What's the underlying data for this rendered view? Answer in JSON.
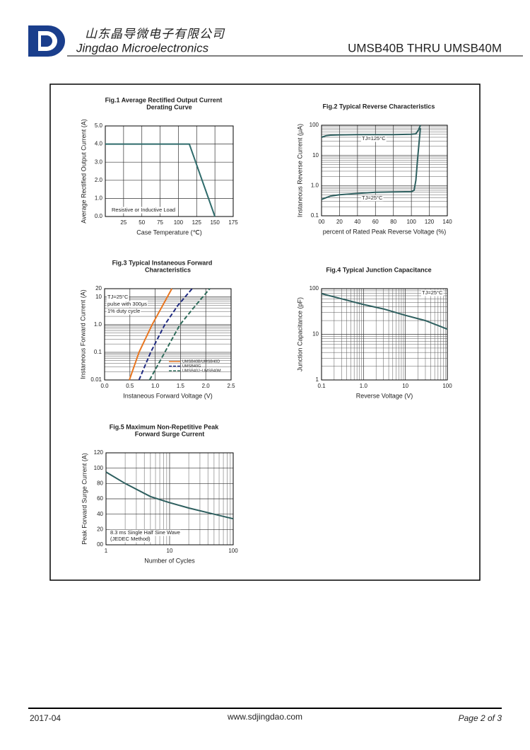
{
  "header": {
    "company_cn": "山东晶导微电子有限公司",
    "company_en": "Jingdao Microelectronics",
    "part": "UMSB40B  THRU  UMSB40M"
  },
  "footer": {
    "date": "2017-04",
    "website": "www.sdjingdao.com",
    "page": "Page  2  of  3"
  },
  "chart_data": [
    {
      "type": "line",
      "title": [
        "Fig.1  Average Rectified Output Current",
        "Derating Curve"
      ],
      "xlabel": "Case Temperature (℃)",
      "ylabel": "Average Rectified Output Current (A)",
      "xlim": [
        0,
        175
      ],
      "xticks": [
        25,
        50,
        75,
        100,
        125,
        150,
        175
      ],
      "ylim": [
        0,
        5
      ],
      "yticks": [
        {
          "value": 0,
          "label": "0.0"
        },
        {
          "value": 1,
          "label": "1.0"
        },
        {
          "value": 2,
          "label": "2.0"
        },
        {
          "value": 3,
          "label": "3.0"
        },
        {
          "value": 4,
          "label": "4.0"
        },
        {
          "value": 5,
          "label": "5.0"
        }
      ],
      "grid": true,
      "annotations": [
        "Resistive or Inductive Load"
      ],
      "series": [
        {
          "name": null,
          "color": "#2e6b6b",
          "x": [
            0,
            115,
            150
          ],
          "values": [
            4,
            4,
            0
          ]
        }
      ]
    },
    {
      "type": "line",
      "title": [
        "Fig.2  Typical Reverse Characteristics"
      ],
      "xlabel": "percent of Rated  Peak Reverse Voltage (%)",
      "ylabel": "Instaneous Reverse Current (μA)",
      "xlim": [
        0,
        140
      ],
      "xticks": [
        {
          "value": 0,
          "label": "00"
        },
        20,
        40,
        60,
        80,
        100,
        120,
        140
      ],
      "ylim": [
        0.1,
        100
      ],
      "ylog": true,
      "yticks": [
        0.1,
        {
          "value": 1,
          "label": "1.0"
        },
        10,
        100
      ],
      "grid": true,
      "annotations": [
        "TJ=125°C",
        "TJ=25°C"
      ],
      "series": [
        {
          "name": null,
          "color": "#2e5f5f",
          "x": [
            0,
            5,
            10,
            20,
            40,
            60,
            80,
            100,
            105,
            108,
            110
          ],
          "values": [
            40,
            45,
            47,
            48,
            49,
            49,
            49,
            50,
            52,
            70,
            100
          ]
        },
        {
          "name": null,
          "color": "#2e5f5f",
          "x": [
            0,
            10,
            20,
            40,
            60,
            80,
            100,
            103,
            105,
            107,
            110
          ],
          "values": [
            0.35,
            0.45,
            0.5,
            0.55,
            0.6,
            0.62,
            0.63,
            0.7,
            1.5,
            8,
            80
          ]
        }
      ]
    },
    {
      "type": "line",
      "title": [
        "Fig.3  Typical Instaneous Forward",
        "Characteristics"
      ],
      "xlabel": "Instaneous Forward Voltage (V)",
      "ylabel": "Instaneous Forward Current (A)",
      "xlim": [
        0,
        2.5
      ],
      "xticks": [
        {
          "value": 0,
          "label": "0.0"
        },
        0.5,
        {
          "value": 1,
          "label": "1.0"
        },
        1.5,
        {
          "value": 2,
          "label": "2.0"
        },
        2.5
      ],
      "ylim": [
        0.01,
        20
      ],
      "ylog": true,
      "yticks": [
        0.01,
        0.1,
        {
          "value": 1,
          "label": "1.0"
        },
        10,
        20
      ],
      "grid": true,
      "legend": "lower right",
      "annotations": [
        "TJ=25°C",
        "pulse with 300μs",
        "1% duty cycle"
      ],
      "series": [
        {
          "name": "UMSB40B/UMSB40D",
          "color": "#e87722",
          "linestyle": "solid",
          "x": [
            0.49,
            0.68,
            0.94,
            1.15,
            1.33
          ],
          "values": [
            0.01,
            0.1,
            1,
            5,
            20
          ]
        },
        {
          "name": "UMSB40G",
          "color": "#1f2a80",
          "linestyle": "dashed",
          "x": [
            0.68,
            0.91,
            1.19,
            1.45,
            1.73
          ],
          "values": [
            0.01,
            0.1,
            1,
            5,
            20
          ]
        },
        {
          "name": "UMSB40J~UMSB40M",
          "color": "#2e6b5a",
          "linestyle": "dashed",
          "x": [
            0.89,
            1.19,
            1.49,
            1.8,
            2.08
          ],
          "values": [
            0.01,
            0.1,
            1,
            5,
            20
          ]
        }
      ]
    },
    {
      "type": "line",
      "title": [
        "Fig.4  Typical Junction Capacitance"
      ],
      "xlabel": "Reverse  Voltage (V)",
      "ylabel": "Junction Capacitance (pF)",
      "xlim": [
        0.1,
        100
      ],
      "xlog": true,
      "xticks": [
        0.1,
        {
          "value": 1,
          "label": "1.0"
        },
        10,
        100
      ],
      "ylim": [
        1,
        100
      ],
      "ylog": true,
      "yticks": [
        1,
        10,
        100
      ],
      "grid": true,
      "annotations": [
        "TJ=25°C"
      ],
      "series": [
        {
          "name": null,
          "color": "#2e5f5f",
          "x": [
            0.1,
            0.3,
            1,
            3,
            10,
            30,
            100
          ],
          "values": [
            78,
            60,
            45,
            36,
            26,
            20,
            13
          ]
        }
      ]
    },
    {
      "type": "line",
      "title": [
        "Fig.5  Maximum Non-Repetitive Peak",
        "Forward Surge Current"
      ],
      "xlabel": "Number of Cycles",
      "ylabel": "Peak Forward Surge Current (A)",
      "xlim": [
        1,
        100
      ],
      "xlog": true,
      "xticks": [
        1,
        10,
        100
      ],
      "ylim": [
        0,
        120
      ],
      "yticks": [
        {
          "value": 0,
          "label": "00"
        },
        20,
        40,
        60,
        80,
        100,
        120
      ],
      "grid": true,
      "annotations": [
        "8.3 ms Single Half Sine Wave",
        "(JEDEC Method)"
      ],
      "series": [
        {
          "name": null,
          "color": "#2e5f5f",
          "x": [
            1,
            2,
            5,
            10,
            20,
            50,
            100
          ],
          "values": [
            95,
            80,
            63,
            55,
            48,
            40,
            34
          ]
        }
      ]
    }
  ]
}
